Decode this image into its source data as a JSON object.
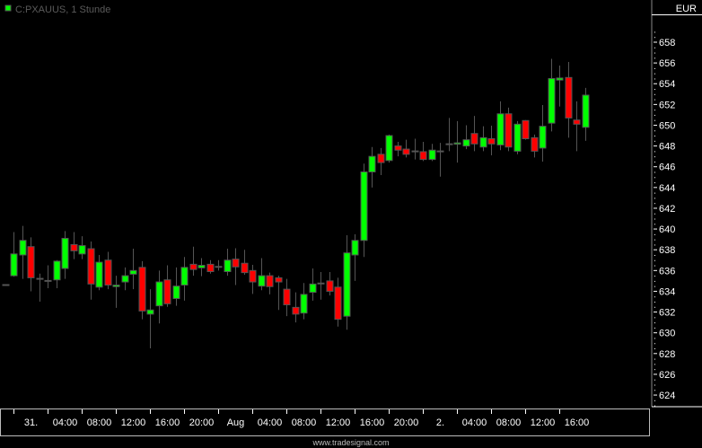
{
  "chart_data": {
    "type": "candlestick",
    "title": "C:PXAUUS, 1 Stunde",
    "currency": "EUR",
    "ylim": [
      622.5,
      659.5
    ],
    "yticks": [
      624,
      626,
      628,
      630,
      632,
      634,
      636,
      638,
      640,
      642,
      644,
      646,
      648,
      650,
      652,
      654,
      656,
      658
    ],
    "xtick_labels": [
      "31.",
      "04:00",
      "08:00",
      "12:00",
      "16:00",
      "20:00",
      "Aug",
      "04:00",
      "08:00",
      "12:00",
      "16:00",
      "20:00",
      "2.",
      "04:00",
      "08:00",
      "12:00",
      "16:00"
    ],
    "grid": false,
    "colors": {
      "up": "#00ff00",
      "down": "#ff0000",
      "outline": "#555555",
      "background": "#000000"
    },
    "candles": [
      [
        634.6,
        634.6,
        634.6,
        634.6
      ],
      [
        635.5,
        639.7,
        635.4,
        637.6
      ],
      [
        637.5,
        640.3,
        635.2,
        638.9
      ],
      [
        638.3,
        639.2,
        634.0,
        635.3
      ],
      [
        635.2,
        635.7,
        633.0,
        635.2
      ],
      [
        635.0,
        636.5,
        634.3,
        635.0
      ],
      [
        635.1,
        637.0,
        634.3,
        636.9
      ],
      [
        636.2,
        639.8,
        635.2,
        639.1
      ],
      [
        638.5,
        639.7,
        637.1,
        637.9
      ],
      [
        637.6,
        639.3,
        637.1,
        638.4
      ],
      [
        638.1,
        638.8,
        633.2,
        634.7
      ],
      [
        634.4,
        637.5,
        634.1,
        636.8
      ],
      [
        637.0,
        637.8,
        634.2,
        634.6
      ],
      [
        634.45,
        635.5,
        632.4,
        634.6
      ],
      [
        634.9,
        636.3,
        634.1,
        635.5
      ],
      [
        635.65,
        638.1,
        634.2,
        636.0
      ],
      [
        636.3,
        636.9,
        631.3,
        632.1
      ],
      [
        631.8,
        634.2,
        628.5,
        632.2
      ],
      [
        632.6,
        636.0,
        630.9,
        634.9
      ],
      [
        635.1,
        636.5,
        632.5,
        632.8
      ],
      [
        633.3,
        636.3,
        632.6,
        634.5
      ],
      [
        634.6,
        637.3,
        633.1,
        636.3
      ],
      [
        636.6,
        638.3,
        635.5,
        636.1
      ],
      [
        636.26,
        637.2,
        635.45,
        636.5
      ],
      [
        636.6,
        637.0,
        635.7,
        635.9
      ],
      [
        636.35,
        637.0,
        636.0,
        636.35
      ],
      [
        635.9,
        638.1,
        635.5,
        637.0
      ],
      [
        637.1,
        638.15,
        634.6,
        636.35
      ],
      [
        636.7,
        638.0,
        635.6,
        635.8
      ],
      [
        636.0,
        636.55,
        633.75,
        634.9
      ],
      [
        634.5,
        637.2,
        634.1,
        635.5
      ],
      [
        635.5,
        635.8,
        633.7,
        634.45
      ],
      [
        635.3,
        635.5,
        632.2,
        634.9
      ],
      [
        634.2,
        635.2,
        631.6,
        632.7
      ],
      [
        632.45,
        633.9,
        631.0,
        631.8
      ],
      [
        631.9,
        634.8,
        631.3,
        633.7
      ],
      [
        633.9,
        636.2,
        633.1,
        634.7
      ],
      [
        634.75,
        635.85,
        633.2,
        634.75
      ],
      [
        635.0,
        635.85,
        633.6,
        634.0
      ],
      [
        634.4,
        635.3,
        630.6,
        631.3
      ],
      [
        631.6,
        639.4,
        630.3,
        637.7
      ],
      [
        637.5,
        639.5,
        635.0,
        638.9
      ],
      [
        638.9,
        646.3,
        637.3,
        645.5
      ],
      [
        645.5,
        647.9,
        644.0,
        647.0
      ],
      [
        647.2,
        647.8,
        645.2,
        646.4
      ],
      [
        646.6,
        649.1,
        646.4,
        649.0
      ],
      [
        648.0,
        648.4,
        647.0,
        647.6
      ],
      [
        647.7,
        648.6,
        646.9,
        647.2
      ],
      [
        647.48,
        648.7,
        646.7,
        647.48
      ],
      [
        647.45,
        648.4,
        646.55,
        646.7
      ],
      [
        646.7,
        648.2,
        646.55,
        647.6
      ],
      [
        647.48,
        648.3,
        645.05,
        647.48
      ],
      [
        648.17,
        650.7,
        647.5,
        648.17
      ],
      [
        648.2,
        650.4,
        646.4,
        648.3
      ],
      [
        648.0,
        650.0,
        647.7,
        648.6
      ],
      [
        649.2,
        650.9,
        647.5,
        648.2
      ],
      [
        647.9,
        649.9,
        647.5,
        648.8
      ],
      [
        648.7,
        649.95,
        647.1,
        648.2
      ],
      [
        648.1,
        652.3,
        647.6,
        651.1
      ],
      [
        651.1,
        651.7,
        647.5,
        647.9
      ],
      [
        647.5,
        650.4,
        647.2,
        650.1
      ],
      [
        650.45,
        650.5,
        648.6,
        648.7
      ],
      [
        648.8,
        649.1,
        646.9,
        647.5
      ],
      [
        647.8,
        651.95,
        646.5,
        649.9
      ],
      [
        650.2,
        656.4,
        649.4,
        654.5
      ],
      [
        654.35,
        655.75,
        651.8,
        654.55
      ],
      [
        654.6,
        656.1,
        648.8,
        650.7
      ],
      [
        650.5,
        652.3,
        647.5,
        650.1
      ],
      [
        649.8,
        653.6,
        648.5,
        652.9
      ]
    ]
  },
  "footer": "www.tradesignal.com",
  "legend_marker_color": "#00ff00"
}
